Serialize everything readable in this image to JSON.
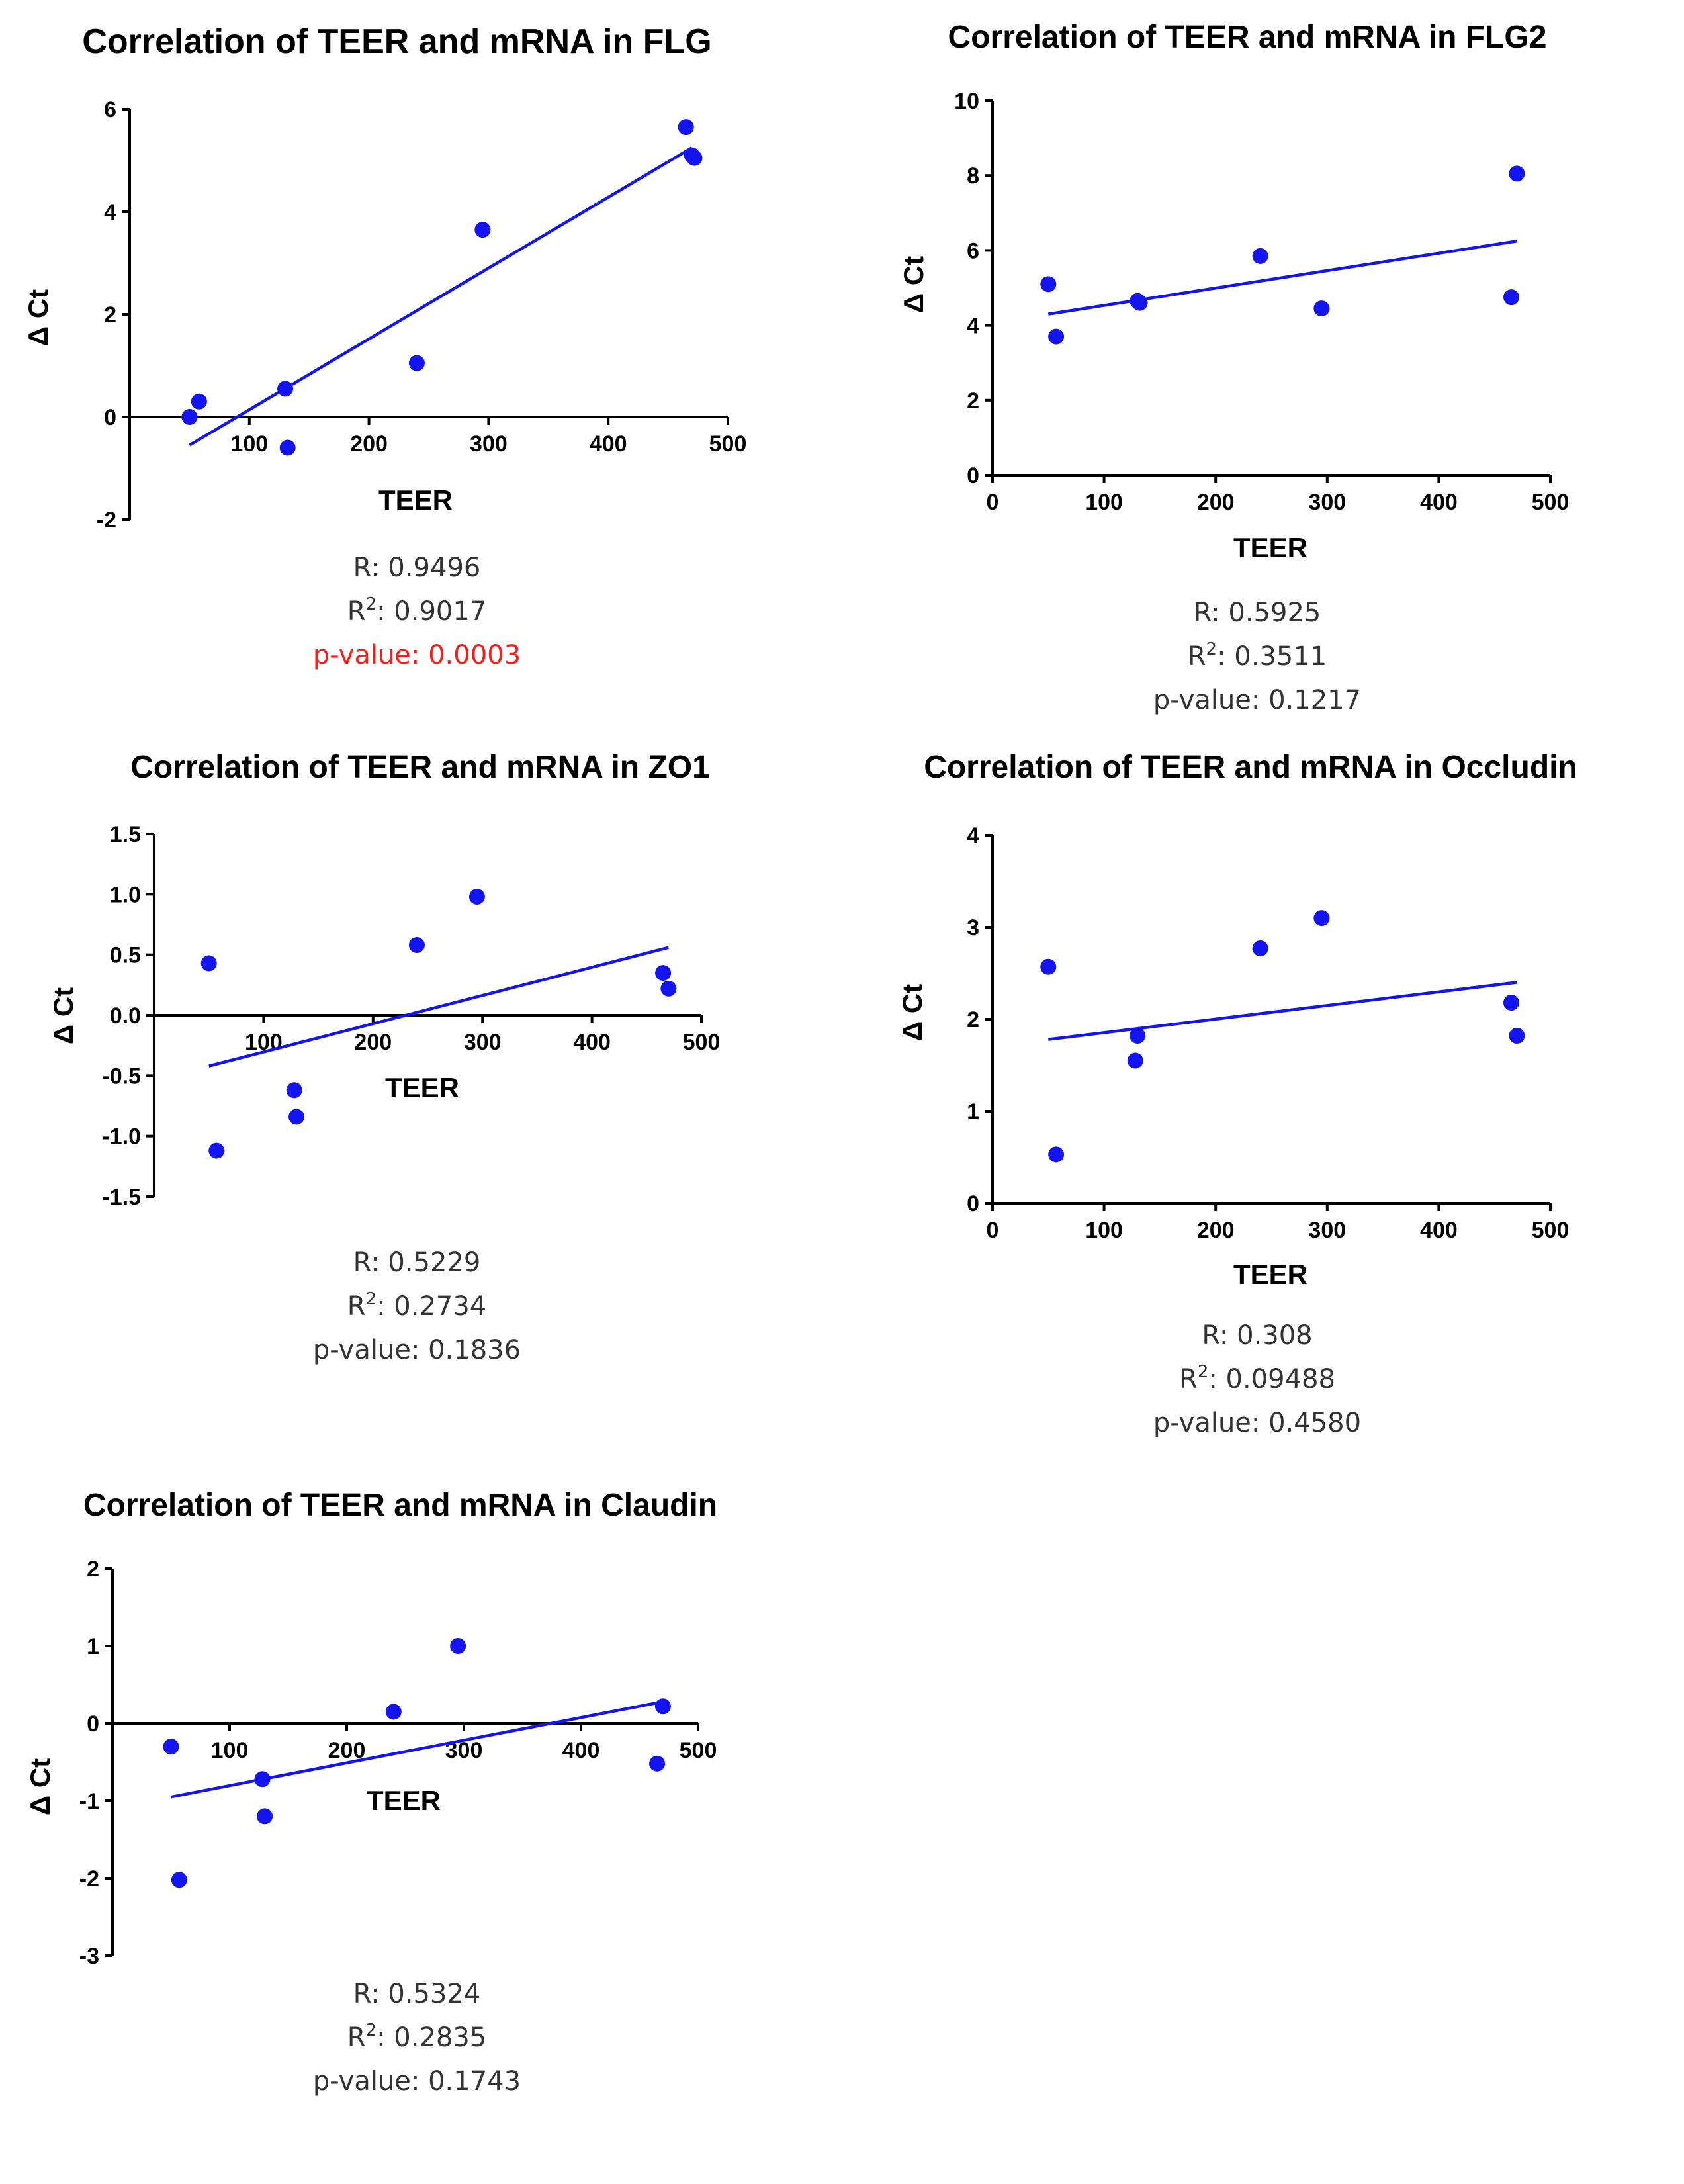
{
  "colors": {
    "points": "#1414f0",
    "fit_line": "#1414f0",
    "significant": "#ff1a1a",
    "stats_text": "#333333"
  },
  "chart_data": [
    {
      "id": "flg",
      "type": "scatter",
      "title": "Correlation of TEER and mRNA in FLG",
      "xlabel": "TEER",
      "ylabel": "Δ Ct",
      "xlim": [
        0,
        500
      ],
      "ylim": [
        -2,
        6
      ],
      "xticks": [
        {
          "v": 100,
          "t": "100"
        },
        {
          "v": 200,
          "t": "200"
        },
        {
          "v": 300,
          "t": "300"
        },
        {
          "v": 400,
          "t": "400"
        },
        {
          "v": 500,
          "t": "500"
        }
      ],
      "yticks": [
        {
          "v": -2,
          "t": "-2"
        },
        {
          "v": 0,
          "t": "0"
        },
        {
          "v": 2,
          "t": "2"
        },
        {
          "v": 4,
          "t": "4"
        },
        {
          "v": 6,
          "t": "6"
        }
      ],
      "x": [
        50,
        58,
        130,
        132,
        240,
        295,
        465,
        470,
        472
      ],
      "y": [
        0.0,
        0.3,
        0.55,
        -0.6,
        1.05,
        3.65,
        5.65,
        5.1,
        5.05
      ],
      "fit": {
        "x": [
          50,
          470
        ],
        "y": [
          -0.55,
          5.25
        ]
      },
      "stats": {
        "r": "R: 0.9496",
        "r2_prefix": "R",
        "r2_sup": "2",
        "r2_value": ": 0.9017",
        "p": "p-value: 0.0003",
        "significant": true
      }
    },
    {
      "id": "flg2",
      "type": "scatter",
      "title": "Correlation of TEER and mRNA in FLG2",
      "xlabel": "TEER",
      "ylabel": "Δ Ct",
      "xlim": [
        0,
        500
      ],
      "ylim": [
        0,
        10
      ],
      "xticks": [
        {
          "v": 0,
          "t": "0"
        },
        {
          "v": 100,
          "t": "100"
        },
        {
          "v": 200,
          "t": "200"
        },
        {
          "v": 300,
          "t": "300"
        },
        {
          "v": 400,
          "t": "400"
        },
        {
          "v": 500,
          "t": "500"
        }
      ],
      "yticks": [
        {
          "v": 0,
          "t": "0"
        },
        {
          "v": 2,
          "t": "2"
        },
        {
          "v": 4,
          "t": "4"
        },
        {
          "v": 6,
          "t": "6"
        },
        {
          "v": 8,
          "t": "8"
        },
        {
          "v": 10,
          "t": "10"
        }
      ],
      "x": [
        50,
        57,
        130,
        132,
        240,
        295,
        465,
        470
      ],
      "y": [
        5.1,
        3.7,
        4.65,
        4.6,
        5.85,
        4.45,
        4.75,
        8.05
      ],
      "fit": {
        "x": [
          50,
          470
        ],
        "y": [
          4.3,
          6.25
        ]
      },
      "stats": {
        "r": "R: 0.5925",
        "r2_prefix": "R",
        "r2_sup": "2",
        "r2_value": ": 0.3511",
        "p": "p-value: 0.1217",
        "significant": false
      }
    },
    {
      "id": "zo1",
      "type": "scatter",
      "title": "Correlation of TEER and mRNA in ZO1",
      "xlabel": "TEER",
      "ylabel": "Δ Ct",
      "xlim": [
        0,
        500
      ],
      "ylim": [
        -1.5,
        1.5
      ],
      "xticks": [
        {
          "v": 100,
          "t": "100"
        },
        {
          "v": 200,
          "t": "200"
        },
        {
          "v": 300,
          "t": "300"
        },
        {
          "v": 400,
          "t": "400"
        },
        {
          "v": 500,
          "t": "500"
        }
      ],
      "yticks": [
        {
          "v": -1.5,
          "t": "-1.5"
        },
        {
          "v": -1.0,
          "t": "-1.0"
        },
        {
          "v": -0.5,
          "t": "-0.5"
        },
        {
          "v": 0.0,
          "t": "0.0"
        },
        {
          "v": 0.5,
          "t": "0.5"
        },
        {
          "v": 1.0,
          "t": "1.0"
        },
        {
          "v": 1.5,
          "t": "1.5"
        }
      ],
      "x": [
        50,
        57,
        128,
        130,
        240,
        295,
        465,
        470
      ],
      "y": [
        0.43,
        -1.12,
        -0.62,
        -0.84,
        0.58,
        0.98,
        0.35,
        0.22
      ],
      "fit": {
        "x": [
          50,
          470
        ],
        "y": [
          -0.42,
          0.56
        ]
      },
      "stats": {
        "r": "R: 0.5229",
        "r2_prefix": "R",
        "r2_sup": "2",
        "r2_value": ": 0.2734",
        "p": "p-value: 0.1836",
        "significant": false
      }
    },
    {
      "id": "occludin",
      "type": "scatter",
      "title": "Correlation of TEER and mRNA in Occludin",
      "xlabel": "TEER",
      "ylabel": "Δ Ct",
      "xlim": [
        0,
        500
      ],
      "ylim": [
        0,
        4
      ],
      "xticks": [
        {
          "v": 0,
          "t": "0"
        },
        {
          "v": 100,
          "t": "100"
        },
        {
          "v": 200,
          "t": "200"
        },
        {
          "v": 300,
          "t": "300"
        },
        {
          "v": 400,
          "t": "400"
        },
        {
          "v": 500,
          "t": "500"
        }
      ],
      "yticks": [
        {
          "v": 0,
          "t": "0"
        },
        {
          "v": 1,
          "t": "1"
        },
        {
          "v": 2,
          "t": "2"
        },
        {
          "v": 3,
          "t": "3"
        },
        {
          "v": 4,
          "t": "4"
        }
      ],
      "x": [
        50,
        57,
        128,
        130,
        240,
        295,
        465,
        470
      ],
      "y": [
        2.57,
        0.53,
        1.55,
        1.82,
        2.77,
        3.1,
        2.18,
        1.82
      ],
      "fit": {
        "x": [
          50,
          470
        ],
        "y": [
          1.78,
          2.4
        ]
      },
      "stats": {
        "r": "R: 0.308",
        "r2_prefix": "R",
        "r2_sup": "2",
        "r2_value": ": 0.09488",
        "p": "p-value: 0.4580",
        "significant": false
      }
    },
    {
      "id": "claudin",
      "type": "scatter",
      "title": "Correlation of TEER and mRNA in Claudin",
      "xlabel": "TEER",
      "ylabel": "Δ Ct",
      "xlim": [
        0,
        500
      ],
      "ylim": [
        -3,
        2
      ],
      "xticks": [
        {
          "v": 100,
          "t": "100"
        },
        {
          "v": 200,
          "t": "200"
        },
        {
          "v": 300,
          "t": "300"
        },
        {
          "v": 400,
          "t": "400"
        },
        {
          "v": 500,
          "t": "500"
        }
      ],
      "yticks": [
        {
          "v": -3,
          "t": "-3"
        },
        {
          "v": -2,
          "t": "-2"
        },
        {
          "v": -1,
          "t": "-1"
        },
        {
          "v": 0,
          "t": "0"
        },
        {
          "v": 1,
          "t": "1"
        },
        {
          "v": 2,
          "t": "2"
        }
      ],
      "x": [
        50,
        57,
        128,
        130,
        240,
        295,
        465,
        470
      ],
      "y": [
        -0.3,
        -2.02,
        -0.72,
        -1.2,
        0.15,
        1.0,
        -0.52,
        0.22
      ],
      "fit": {
        "x": [
          50,
          470
        ],
        "y": [
          -0.95,
          0.28
        ]
      },
      "stats": {
        "r": "R: 0.5324",
        "r2_prefix": "R",
        "r2_sup": "2",
        "r2_value": ": 0.2835",
        "p": "p-value: 0.1743",
        "significant": false
      }
    }
  ]
}
